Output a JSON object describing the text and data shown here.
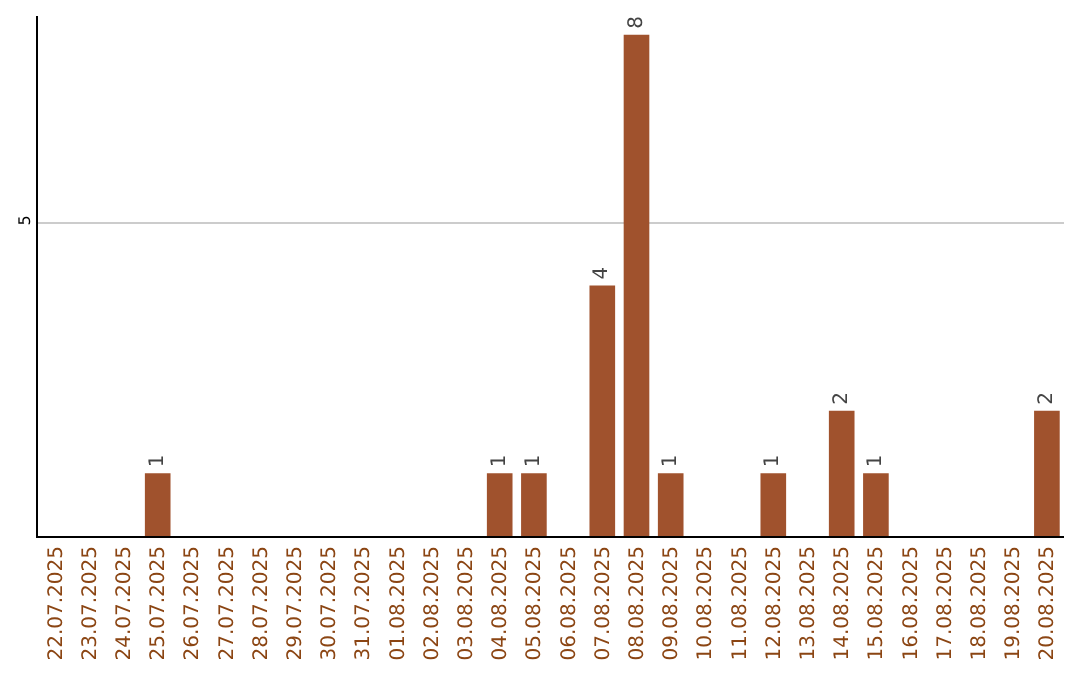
{
  "chart_data": {
    "type": "bar",
    "categories": [
      "22.07.2025",
      "23.07.2025",
      "24.07.2025",
      "25.07.2025",
      "26.07.2025",
      "27.07.2025",
      "28.07.2025",
      "29.07.2025",
      "30.07.2025",
      "31.07.2025",
      "01.08.2025",
      "02.08.2025",
      "03.08.2025",
      "04.08.2025",
      "05.08.2025",
      "06.08.2025",
      "07.08.2025",
      "08.08.2025",
      "09.08.2025",
      "10.08.2025",
      "11.08.2025",
      "12.08.2025",
      "13.08.2025",
      "14.08.2025",
      "15.08.2025",
      "16.08.2025",
      "17.08.2025",
      "18.08.2025",
      "19.08.2025",
      "20.08.2025"
    ],
    "values": [
      0,
      0,
      0,
      1,
      0,
      0,
      0,
      0,
      0,
      0,
      0,
      0,
      0,
      1,
      1,
      0,
      4,
      8,
      1,
      0,
      0,
      1,
      0,
      2,
      1,
      0,
      0,
      0,
      0,
      2
    ],
    "value_labels": [
      null,
      null,
      null,
      "1",
      null,
      null,
      null,
      null,
      null,
      null,
      null,
      null,
      null,
      "1",
      "1",
      null,
      "4",
      "8",
      "1",
      null,
      null,
      "1",
      null,
      "2",
      "1",
      null,
      null,
      null,
      null,
      "2"
    ],
    "color": "#a0522d",
    "ylim": [
      0,
      8.3
    ],
    "yticks": [
      5
    ],
    "grid": "y"
  }
}
